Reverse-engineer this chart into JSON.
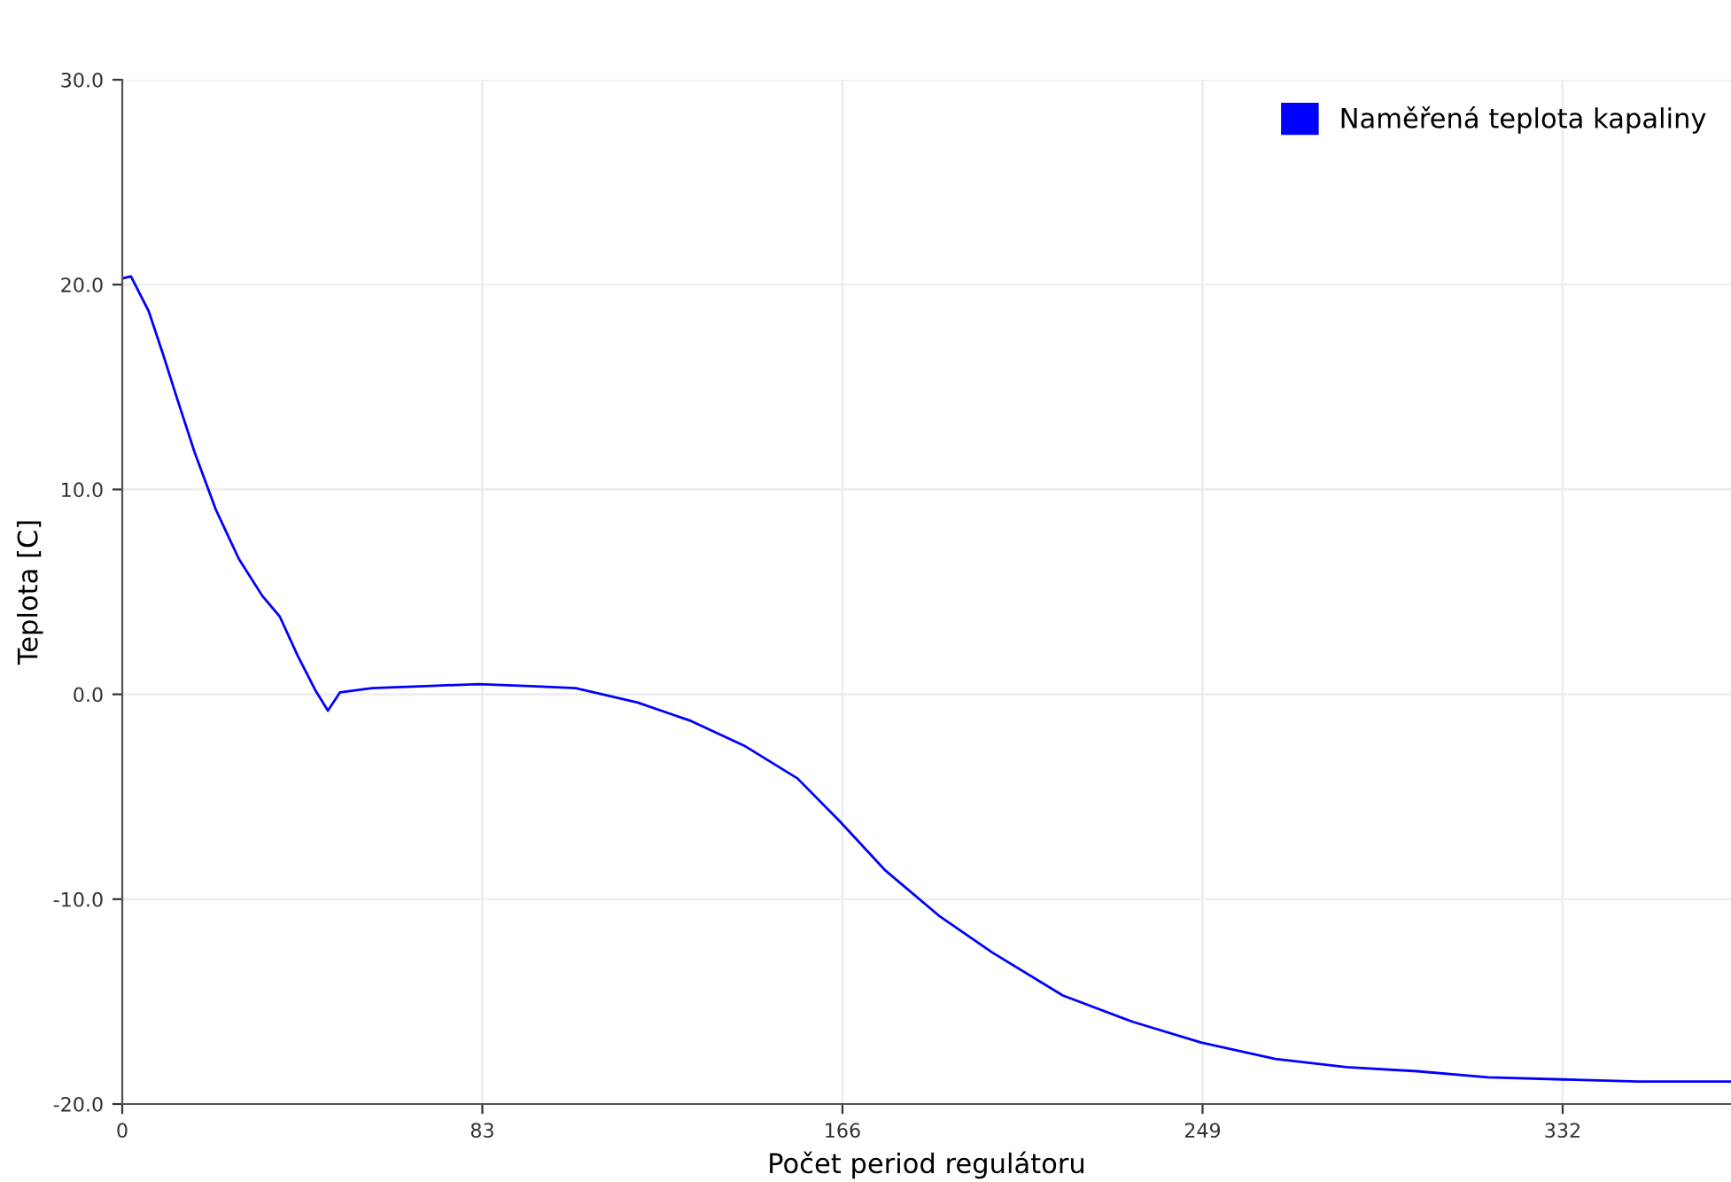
{
  "chart_data": {
    "type": "line",
    "xlabel": "Počet period regulátoru",
    "ylabel": "Teplota [C]",
    "xlim": [
      0,
      370.8
    ],
    "ylim": [
      -20,
      30
    ],
    "xticks": [
      0,
      83,
      166,
      249,
      332
    ],
    "yticks": [
      {
        "value": -20,
        "label": "-20.0"
      },
      {
        "value": -10,
        "label": "-10.0"
      },
      {
        "value": 0,
        "label": "0.0"
      },
      {
        "value": 10,
        "label": "10.0"
      },
      {
        "value": 20,
        "label": "20.0"
      },
      {
        "value": 30,
        "label": "30.0"
      }
    ],
    "grid": true,
    "legend": "top right",
    "marker": "none",
    "line_style": "solid",
    "series": [
      {
        "name": "Naměřená teplota kapaliny",
        "color": "#0000ff",
        "x": [
          0,
          2.0,
          6.1,
          9.4,
          12.7,
          16.7,
          21.6,
          26.9,
          32.3,
          36.3,
          40.4,
          44.5,
          47.4,
          50.2,
          57.6,
          69.8,
          82.1,
          94.3,
          104.5,
          118.8,
          131.1,
          143.3,
          155.6,
          165.4,
          175.9,
          188.2,
          200.5,
          216.8,
          233.1,
          248.7,
          265.8,
          282.2,
          298.5,
          314.8,
          332,
          349.5,
          370.8
        ],
        "values": [
          20.3,
          20.4,
          18.7,
          16.6,
          14.4,
          11.8,
          9.0,
          6.6,
          4.8,
          3.8,
          1.9,
          0.2,
          -0.8,
          0.1,
          0.3,
          0.4,
          0.5,
          0.4,
          0.3,
          -0.4,
          -1.3,
          -2.5,
          -4.1,
          -6.2,
          -8.6,
          -10.8,
          -12.6,
          -14.7,
          -16.0,
          -17.0,
          -17.8,
          -18.2,
          -18.4,
          -18.7,
          -18.8,
          -18.9,
          -18.9
        ]
      }
    ]
  }
}
